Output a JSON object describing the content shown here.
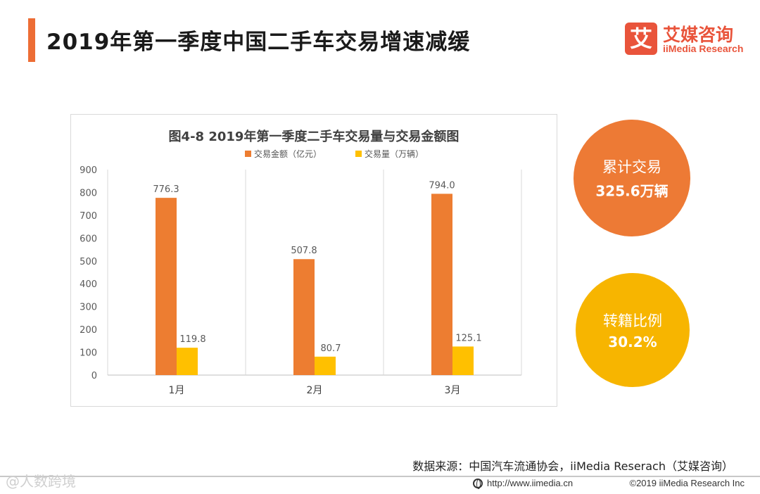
{
  "header": {
    "title": "2019年第一季度中国二手车交易增速减缓"
  },
  "logo": {
    "glyph": "艾",
    "name": "艾媒咨询",
    "subtitle": "iiMedia Research"
  },
  "colors": {
    "accent": "#ED6D35",
    "bar_amount": "#ED7D31",
    "bar_volume": "#FFC000",
    "bubble_total": "#ED7A35",
    "bubble_ratio": "#F7B500"
  },
  "chart_data": {
    "type": "bar",
    "title": "图4-8   2019年第一季度二手车交易量与交易金额图",
    "categories": [
      "1月",
      "2月",
      "3月"
    ],
    "series": [
      {
        "name": "交易金额（亿元）",
        "values": [
          776.3,
          507.8,
          794.0
        ],
        "labels": [
          "776.3",
          "507.8",
          "794.0"
        ]
      },
      {
        "name": "交易量（万辆）",
        "values": [
          119.8,
          80.7,
          125.1
        ],
        "labels": [
          "119.8",
          "80.7",
          "125.1"
        ]
      }
    ],
    "ylim": [
      0,
      900
    ],
    "yticks": [
      "0",
      "100",
      "200",
      "300",
      "400",
      "500",
      "600",
      "700",
      "800",
      "900"
    ],
    "xlabel": "",
    "ylabel": "",
    "legend_position": "top-center"
  },
  "bubbles": [
    {
      "line1": "累计交易",
      "line2": "325.6万辆"
    },
    {
      "line1": "转籍比例",
      "line2": "30.2%"
    }
  ],
  "footer": {
    "source": "数据来源：中国汽车流通协会，iiMedia Reserach（艾媒咨询）",
    "watermark": "@人数跨境",
    "url": "http://www.iimedia.cn",
    "copyright": "©2019  iiMedia Research  Inc"
  }
}
